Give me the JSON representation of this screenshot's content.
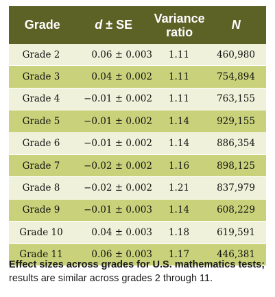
{
  "table": {
    "headers": {
      "grade": "Grade",
      "d_prefix": "d",
      "d_suffix": " ± SE",
      "variance_line1": "Variance",
      "variance_line2": "ratio",
      "n": "N"
    },
    "rows": [
      {
        "grade": "Grade 2",
        "d": "0.06 ± 0.003",
        "variance": "1.11",
        "n": "460,980"
      },
      {
        "grade": "Grade 3",
        "d": "0.04 ± 0.002",
        "variance": "1.11",
        "n": "754,894"
      },
      {
        "grade": "Grade 4",
        "d": "−0.01 ± 0.002",
        "variance": "1.11",
        "n": "763,155"
      },
      {
        "grade": "Grade 5",
        "d": "−0.01 ± 0.002",
        "variance": "1.14",
        "n": "929,155"
      },
      {
        "grade": "Grade 6",
        "d": "−0.01 ± 0.002",
        "variance": "1.14",
        "n": "886,354"
      },
      {
        "grade": "Grade 7",
        "d": "−0.02 ± 0.002",
        "variance": "1.16",
        "n": "898,125"
      },
      {
        "grade": "Grade 8",
        "d": "−0.02 ± 0.002",
        "variance": "1.21",
        "n": "837,979"
      },
      {
        "grade": "Grade 9",
        "d": "−0.01 ± 0.003",
        "variance": "1.14",
        "n": "608,229"
      },
      {
        "grade": "Grade 10",
        "d": "0.04 ± 0.003",
        "variance": "1.18",
        "n": "619,591"
      },
      {
        "grade": "Grade 11",
        "d": "0.06 ± 0.003",
        "variance": "1.17",
        "n": "446,381"
      }
    ]
  },
  "caption": {
    "bold": "Effect sizes across grades for U.S. mathematics tests;",
    "normal": " results are similar across grades 2 through 11."
  },
  "colors": {
    "header_bg": "#5c6126",
    "row_light": "#eff1da",
    "row_dark": "#c9d17a"
  }
}
